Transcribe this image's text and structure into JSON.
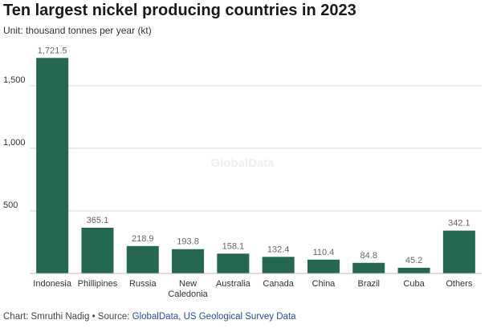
{
  "header": {
    "title": "Ten largest nickel producing countries in 2023",
    "subtitle": "Unit: thousand tonnes per year (kt)"
  },
  "footer": {
    "prefix": "Chart: Smruthi Nadig • Source: ",
    "source_1": "GlobalData",
    "separator": ", ",
    "source_2": "US Geological Survey Data"
  },
  "watermark": "GlobalData",
  "colors": {
    "bar": "#24684f",
    "grid": "#d9d9d9",
    "axis_text": "#333333",
    "value_label": "#666666"
  },
  "chart_data": {
    "type": "bar",
    "title": "Ten largest nickel producing countries in 2023",
    "subtitle": "Unit: thousand tonnes per year (kt)",
    "categories": [
      "Indonesia",
      "Phillipines",
      "Russia",
      "New Caledonia",
      "Australia",
      "Canada",
      "China",
      "Brazil",
      "Cuba",
      "Others"
    ],
    "category_lines": [
      [
        "Indonesia"
      ],
      [
        "Phillipines"
      ],
      [
        "Russia"
      ],
      [
        "New",
        "Caledonia"
      ],
      [
        "Australia"
      ],
      [
        "Canada"
      ],
      [
        "China"
      ],
      [
        "Brazil"
      ],
      [
        "Cuba"
      ],
      [
        "Others"
      ]
    ],
    "values": [
      1721.5,
      365.1,
      218.9,
      193.8,
      158.1,
      132.4,
      110.4,
      84.8,
      45.2,
      342.1
    ],
    "value_labels": [
      "1,721.5",
      "365.1",
      "218.9",
      "193.8",
      "158.1",
      "132.4",
      "110.4",
      "84.8",
      "45.2",
      "342.1"
    ],
    "yticks": [
      500,
      1000,
      1500
    ],
    "ytick_labels": [
      "500",
      "1,000",
      "1,500"
    ],
    "ylim": [
      0,
      1800
    ],
    "grid": true,
    "legend": "none"
  }
}
